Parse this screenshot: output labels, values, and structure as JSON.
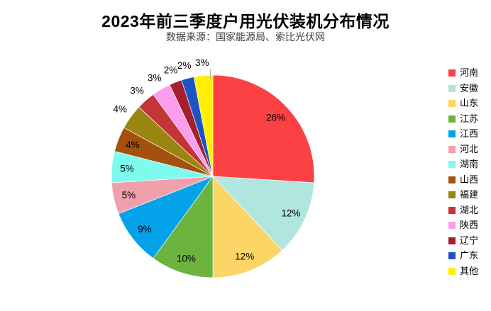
{
  "page": {
    "background": "#FFFFFF"
  },
  "chart_data": {
    "type": "pie",
    "title": "2023年前三季度户用光伏装机分布情况",
    "subtitle": "数据来源：国家能源局、索比光伏网",
    "legend_position": "right",
    "start_angle": "12-oclock",
    "direction": "clockwise",
    "unit": "%",
    "categories": [
      "河南",
      "安徽",
      "山东",
      "江苏",
      "江西",
      "河北",
      "湖南",
      "山西",
      "福建",
      "湖北",
      "陕西",
      "辽宁",
      "广东",
      "其他"
    ],
    "values": [
      26,
      12,
      12,
      10,
      9,
      5,
      5,
      4,
      4,
      3,
      3,
      2,
      2,
      3
    ],
    "slices": [
      {
        "label": "河南",
        "value": 26,
        "pct_label": "26%",
        "color": "#FB4144",
        "label_placement": "inside"
      },
      {
        "label": "安徽",
        "value": 12,
        "pct_label": "12%",
        "color": "#AFE6DD",
        "label_placement": "inside"
      },
      {
        "label": "山东",
        "value": 12,
        "pct_label": "12%",
        "color": "#FCD567",
        "label_placement": "inside"
      },
      {
        "label": "江苏",
        "value": 10,
        "pct_label": "10%",
        "color": "#6CB33F",
        "label_placement": "inside"
      },
      {
        "label": "江西",
        "value": 9,
        "pct_label": "9%",
        "color": "#04A2E9",
        "label_placement": "inside"
      },
      {
        "label": "河北",
        "value": 5,
        "pct_label": "5%",
        "color": "#F0A0AB",
        "label_placement": "inside"
      },
      {
        "label": "湖南",
        "value": 5,
        "pct_label": "5%",
        "color": "#7EFBEF",
        "label_placement": "inside"
      },
      {
        "label": "山西",
        "value": 4,
        "pct_label": "4%",
        "color": "#A4500F",
        "label_placement": "inside"
      },
      {
        "label": "福建",
        "value": 4,
        "pct_label": "4%",
        "color": "#9A8510",
        "label_placement": "outside"
      },
      {
        "label": "湖北",
        "value": 3,
        "pct_label": "3%",
        "color": "#C33537",
        "label_placement": "outside"
      },
      {
        "label": "陕西",
        "value": 3,
        "pct_label": "3%",
        "color": "#FC9DED",
        "label_placement": "outside"
      },
      {
        "label": "辽宁",
        "value": 2,
        "pct_label": "2%",
        "color": "#A4202D",
        "label_placement": "outside"
      },
      {
        "label": "广东",
        "value": 2,
        "pct_label": "2%",
        "color": "#1D53C4",
        "label_placement": "outside"
      },
      {
        "label": "其他",
        "value": 3,
        "pct_label": "3%",
        "color": "#FFF100",
        "label_placement": "outside",
        "leader_line": true
      }
    ],
    "colors": {
      "title": "#000000",
      "subtitle": "#404040",
      "data_label": "#000000",
      "slice_border": "#FFFFFF",
      "leader_line": "#A6A6A6",
      "background": "#FFFFFF"
    }
  }
}
